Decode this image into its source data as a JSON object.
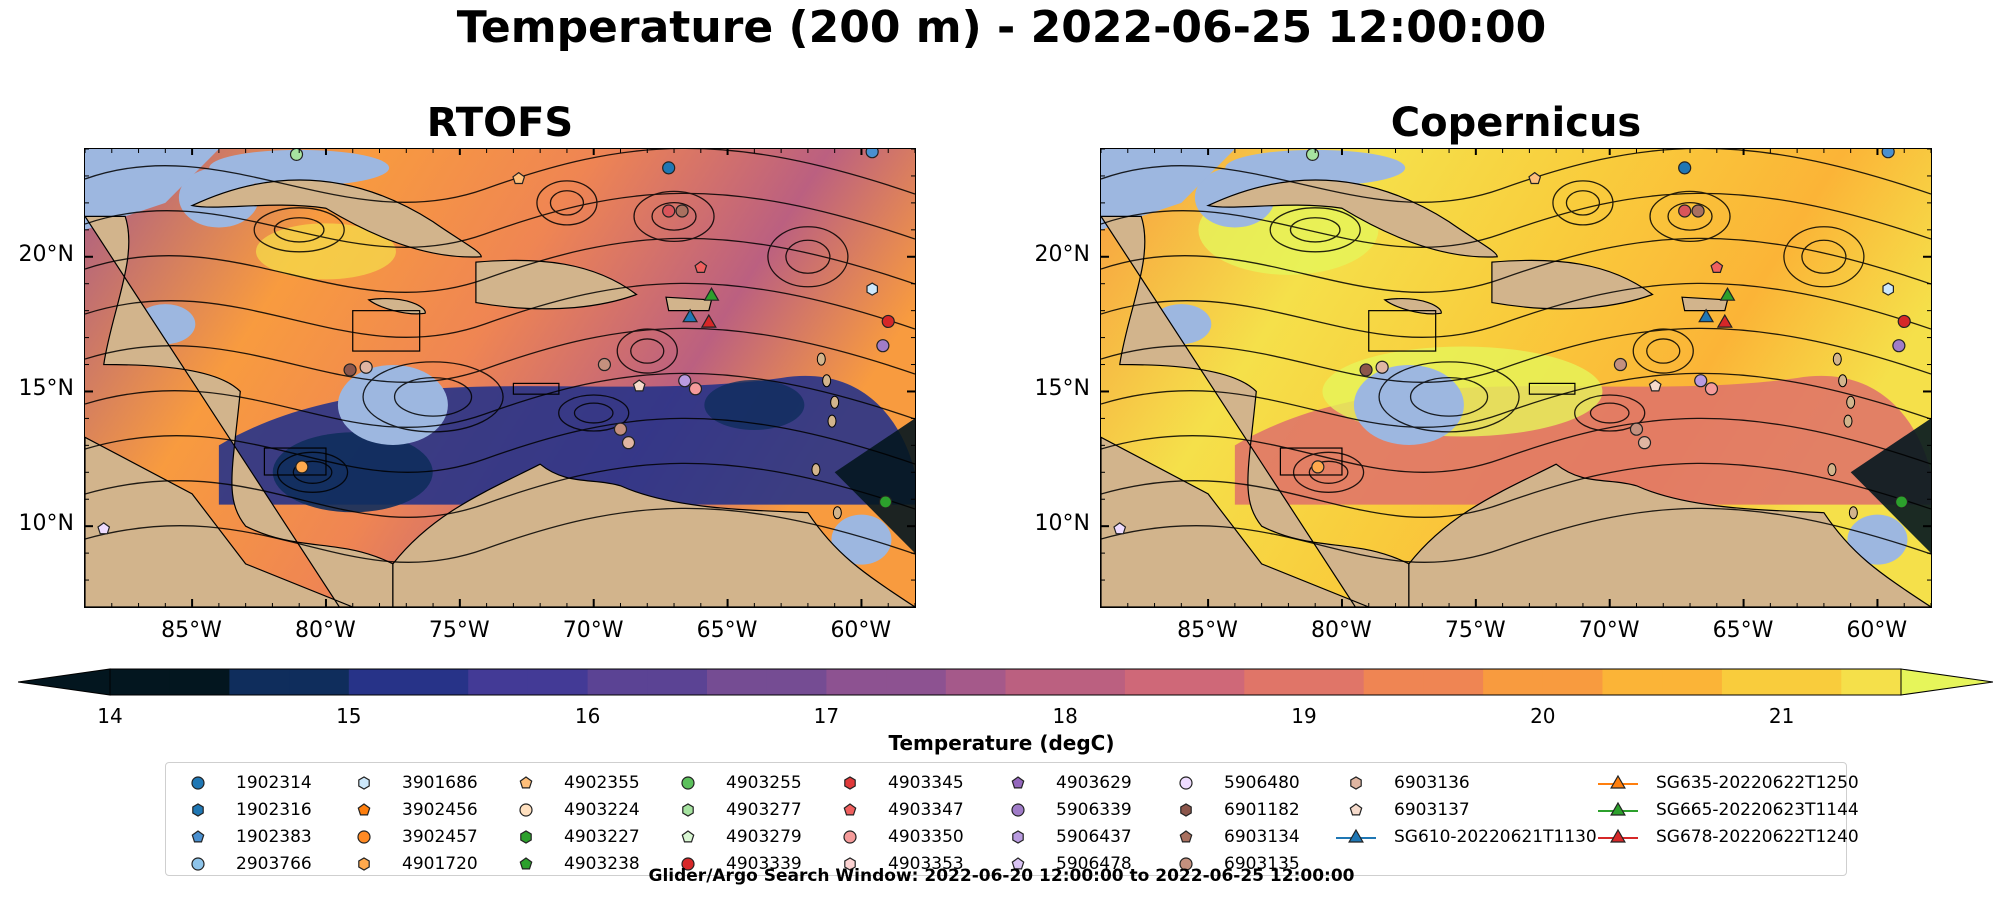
{
  "title": "Temperature (200 m) - 2022-06-25 12:00:00",
  "panels": [
    {
      "title": "RTOFS",
      "field": "warm-west"
    },
    {
      "title": "Copernicus",
      "field": "warmer"
    }
  ],
  "axes": {
    "lon_ticks": [
      "85°W",
      "80°W",
      "75°W",
      "70°W",
      "65°W",
      "60°W"
    ],
    "lat_ticks": [
      "20°N",
      "15°N",
      "10°N"
    ],
    "lon_values": [
      -85,
      -80,
      -75,
      -70,
      -65,
      -60
    ],
    "lat_values": [
      20,
      15,
      10
    ],
    "lon_range": [
      -89,
      -58
    ],
    "lat_range": [
      7,
      24
    ]
  },
  "colorbar": {
    "label": "Temperature (degC)",
    "tick_labels": [
      "14",
      "15",
      "16",
      "17",
      "18",
      "19",
      "20",
      "21"
    ],
    "range": [
      14,
      21.5
    ],
    "step": 0.25,
    "extend": "both",
    "colors": [
      "#03161f",
      "#0f2d5c",
      "#273388",
      "#433a96",
      "#5b4394",
      "#754c93",
      "#8d5291",
      "#a5598a",
      "#bb6080",
      "#cf6878",
      "#e07568",
      "#ef8553",
      "#f89b3f",
      "#fbb437",
      "#f9cc3c",
      "#f5e04a",
      "#e6f55a"
    ]
  },
  "legend": {
    "columns": [
      [
        {
          "label": "1902314",
          "marker": "circle",
          "color": "#1f77b4"
        },
        {
          "label": "1902316",
          "marker": "hexagon",
          "color": "#1f77b4"
        },
        {
          "label": "1902383",
          "marker": "pentagon",
          "color": "#4a90d0"
        },
        {
          "label": "2903766",
          "marker": "circle",
          "color": "#8ec4ea"
        }
      ],
      [
        {
          "label": "3901686",
          "marker": "hexagon",
          "color": "#cde8fb"
        },
        {
          "label": "3902456",
          "marker": "pentagon",
          "color": "#ff7f0e"
        },
        {
          "label": "3902457",
          "marker": "circle",
          "color": "#ff8a24"
        },
        {
          "label": "4901720",
          "marker": "hexagon",
          "color": "#ffa94d"
        }
      ],
      [
        {
          "label": "4902355",
          "marker": "pentagon",
          "color": "#ffbf7a"
        },
        {
          "label": "4903224",
          "marker": "circle",
          "color": "#ffe0bf"
        },
        {
          "label": "4903227",
          "marker": "hexagon",
          "color": "#2ca02c"
        },
        {
          "label": "4903238",
          "marker": "pentagon",
          "color": "#2ca02c"
        }
      ],
      [
        {
          "label": "4903255",
          "marker": "circle",
          "color": "#5cc05c"
        },
        {
          "label": "4903277",
          "marker": "hexagon",
          "color": "#a6e3a0"
        },
        {
          "label": "4903279",
          "marker": "pentagon",
          "color": "#d9f7d3"
        },
        {
          "label": "4903339",
          "marker": "circle",
          "color": "#d62728"
        }
      ],
      [
        {
          "label": "4903345",
          "marker": "hexagon",
          "color": "#e0393a"
        },
        {
          "label": "4903347",
          "marker": "pentagon",
          "color": "#f0605f"
        },
        {
          "label": "4903350",
          "marker": "circle",
          "color": "#f59b9a"
        },
        {
          "label": "4903353",
          "marker": "hexagon",
          "color": "#fcd3d2"
        }
      ],
      [
        {
          "label": "4903629",
          "marker": "pentagon",
          "color": "#9467bd"
        },
        {
          "label": "5906339",
          "marker": "circle",
          "color": "#a07cc8"
        },
        {
          "label": "5906437",
          "marker": "hexagon",
          "color": "#b99be0"
        },
        {
          "label": "5906478",
          "marker": "pentagon",
          "color": "#d9c3f3"
        }
      ],
      [
        {
          "label": "5906480",
          "marker": "circle",
          "color": "#eedcff"
        },
        {
          "label": "6901182",
          "marker": "hexagon",
          "color": "#8c564b"
        },
        {
          "label": "6903134",
          "marker": "pentagon",
          "color": "#a9705f"
        },
        {
          "label": "6903135",
          "marker": "circle",
          "color": "#c4907e"
        }
      ],
      [
        {
          "label": "6903136",
          "marker": "hexagon",
          "color": "#e0b6a2"
        },
        {
          "label": "6903137",
          "marker": "pentagon",
          "color": "#f6dbcc"
        },
        {
          "label": "SG610-20220621T1130",
          "marker": "triangle-line",
          "color": "#1f77b4"
        },
        {
          "label": "",
          "marker": "none",
          "color": ""
        }
      ],
      [
        {
          "label": "SG635-20220622T1250",
          "marker": "triangle-line",
          "color": "#ff7f0e"
        },
        {
          "label": "SG665-20220623T1144",
          "marker": "triangle-line",
          "color": "#2ca02c"
        },
        {
          "label": "SG678-20220622T1240",
          "marker": "triangle-line",
          "color": "#d62728"
        },
        {
          "label": "",
          "marker": "none",
          "color": ""
        }
      ]
    ]
  },
  "footer": "Glider/Argo Search Window: 2022-06-20 12:00:00 to 2022-06-25 12:00:00",
  "map_colors": {
    "land": "#d2b48c",
    "shallow": "#9db7e0",
    "grid": "#000000"
  },
  "observations": [
    {
      "id": "2903766",
      "lon": -81.1,
      "lat": 23.8,
      "color": "#a6e3a0",
      "marker": "circle"
    },
    {
      "id": "4902355",
      "lon": -72.8,
      "lat": 22.9,
      "color": "#ffbf7a",
      "marker": "pentagon"
    },
    {
      "id": "1902314",
      "lon": -67.2,
      "lat": 23.3,
      "color": "#1f77b4",
      "marker": "circle"
    },
    {
      "id": "4903350",
      "lon": -67.2,
      "lat": 21.7,
      "color": "#d9555a",
      "marker": "circle"
    },
    {
      "id": "6901182",
      "lon": -66.7,
      "lat": 21.7,
      "color": "#a9705f",
      "marker": "circle"
    },
    {
      "id": "4903347",
      "lon": -66.0,
      "lat": 19.6,
      "color": "#f0605f",
      "marker": "pentagon"
    },
    {
      "id": "3901686",
      "lon": -59.6,
      "lat": 23.9,
      "color": "#4a90d0",
      "marker": "circle"
    },
    {
      "id": "4903345",
      "lon": -59.6,
      "lat": 18.8,
      "color": "#cde8fb",
      "marker": "hexagon"
    },
    {
      "id": "4903339",
      "lon": -59.0,
      "lat": 17.6,
      "color": "#d62728",
      "marker": "circle"
    },
    {
      "id": "5906339",
      "lon": -59.2,
      "lat": 16.7,
      "color": "#a07cc8",
      "marker": "circle"
    },
    {
      "id": "4903224",
      "lon": -69.6,
      "lat": 16.0,
      "color": "#c4907e",
      "marker": "circle"
    },
    {
      "id": "5906478",
      "lon": -68.3,
      "lat": 15.2,
      "color": "#f6dbcc",
      "marker": "pentagon"
    },
    {
      "id": "5906437",
      "lon": -66.6,
      "lat": 15.4,
      "color": "#b99be0",
      "marker": "circle"
    },
    {
      "id": "4903353",
      "lon": -66.2,
      "lat": 15.1,
      "color": "#f59b9a",
      "marker": "circle"
    },
    {
      "id": "6903135",
      "lon": -69.0,
      "lat": 13.6,
      "color": "#c4907e",
      "marker": "circle"
    },
    {
      "id": "6903136",
      "lon": -68.7,
      "lat": 13.1,
      "color": "#e0b6a2",
      "marker": "circle"
    },
    {
      "id": "6903134",
      "lon": -79.1,
      "lat": 15.8,
      "color": "#8c564b",
      "marker": "circle"
    },
    {
      "id": "6903137",
      "lon": -78.5,
      "lat": 15.9,
      "color": "#e0b6a2",
      "marker": "circle"
    },
    {
      "id": "3902457",
      "lon": -80.9,
      "lat": 12.2,
      "color": "#ffa94d",
      "marker": "circle"
    },
    {
      "id": "5906480",
      "lon": -88.3,
      "lat": 9.9,
      "color": "#eedcff",
      "marker": "pentagon"
    },
    {
      "id": "4903255",
      "lon": -59.1,
      "lat": 10.9,
      "color": "#2ca02c",
      "marker": "circle"
    }
  ],
  "gliders": [
    {
      "id": "SG610-20220621T1130",
      "lon": -66.4,
      "lat": 17.7,
      "color": "#1f77b4"
    },
    {
      "id": "SG665-20220623T1144",
      "lon": -65.6,
      "lat": 18.5,
      "color": "#2ca02c"
    },
    {
      "id": "SG678-20220622T1240",
      "lon": -65.7,
      "lat": 17.5,
      "color": "#d62728"
    }
  ]
}
